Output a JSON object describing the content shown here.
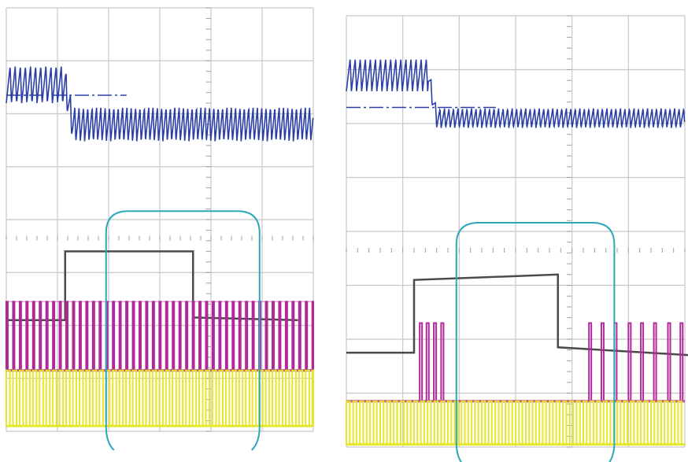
{
  "colors": {
    "background": "#ffffff",
    "grid": "#c8c8c8",
    "minor_tick": "#a0a0a0",
    "ch1": "#2a3fa6",
    "ch2": "#4a4a4a",
    "ch3": "#b0289a",
    "ch4": "#e6e62a",
    "highlight": "#2aa8b8"
  },
  "chart_data": [
    {
      "type": "line",
      "title": "",
      "grid": true,
      "divisions": {
        "x": 6,
        "y": 8
      },
      "series": [
        {
          "channel": "ch1",
          "kind": "ripple",
          "pre_level": 6.55,
          "post_level": 5.8,
          "step_at": 1.15,
          "pre_ripple": 0.35,
          "post_ripple": 0.32,
          "pre_period": 0.1,
          "post_period": 0.085,
          "ref_level": 6.35
        },
        {
          "channel": "ch2",
          "kind": "step",
          "points": [
            [
              0,
              2.1
            ],
            [
              1.15,
              2.1
            ],
            [
              1.15,
              3.4
            ],
            [
              3.65,
              3.4
            ],
            [
              3.65,
              2.15
            ],
            [
              5.7,
              2.1
            ]
          ]
        },
        {
          "channel": "ch3",
          "kind": "pulses",
          "base": 1.15,
          "top": 2.45,
          "period": 0.13,
          "width": 0.03
        },
        {
          "channel": "ch4",
          "kind": "pulses",
          "base": 0.1,
          "top": 1.15,
          "period": 0.13,
          "width": 0.07
        }
      ],
      "highlight": {
        "x_start": 1.95,
        "x_end": 4.95
      }
    },
    {
      "type": "line",
      "title": "",
      "grid": true,
      "divisions": {
        "x": 6,
        "y": 8
      },
      "series": [
        {
          "channel": "ch1",
          "kind": "ripple",
          "pre_level": 6.9,
          "post_level": 6.1,
          "step_at": 1.45,
          "pre_ripple": 0.3,
          "post_ripple": 0.18,
          "pre_period": 0.09,
          "post_period": 0.08,
          "ref_level": 6.3
        },
        {
          "channel": "ch2",
          "kind": "step",
          "points": [
            [
              0,
              1.75
            ],
            [
              1.2,
              1.75
            ],
            [
              1.2,
              3.1
            ],
            [
              3.75,
              3.2
            ],
            [
              3.75,
              1.85
            ],
            [
              6.15,
              1.7
            ],
            [
              6.15,
              3.2
            ],
            [
              6.4,
              3.2
            ]
          ]
        },
        {
          "channel": "ch3",
          "kind": "bursts",
          "base": 0.85,
          "top": 2.3,
          "pulse_times": [
            1.3,
            1.42,
            1.55,
            1.68,
            4.3,
            4.52,
            4.75,
            5.0,
            5.22,
            5.45,
            5.7,
            5.92,
            6.15
          ]
        },
        {
          "channel": "ch4",
          "kind": "pulses",
          "base": 0.05,
          "top": 0.85,
          "period": 0.12,
          "width": 0.06
        }
      ],
      "highlight": {
        "x_start": 1.95,
        "x_end": 4.75
      }
    }
  ]
}
